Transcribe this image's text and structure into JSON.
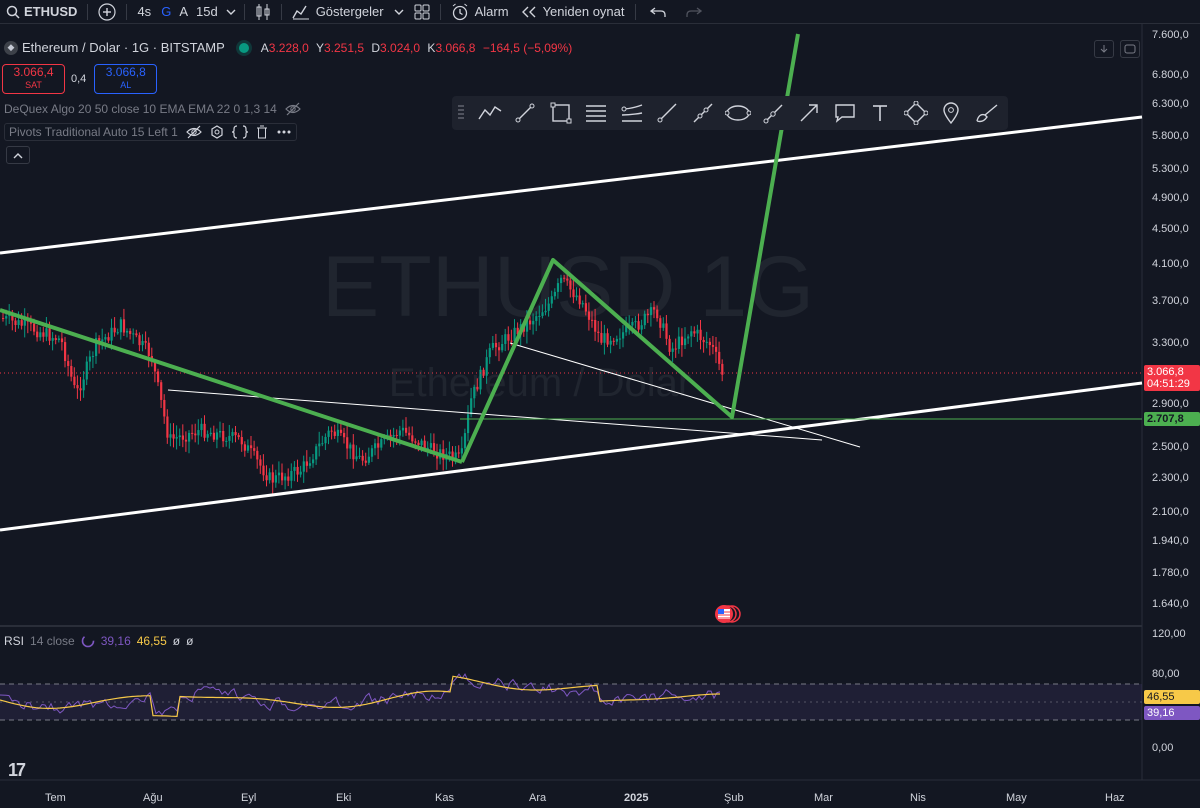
{
  "topbar": {
    "symbol": "ETHUSD",
    "intervals": [
      "4s",
      "G",
      "A",
      "15d"
    ],
    "indicators_label": "Göstergeler",
    "alarm_label": "Alarm",
    "replay_label": "Yeniden oynat"
  },
  "legend": {
    "title": "Ethereum / Dolar · 1G · BITSTAMP",
    "ohlc": [
      {
        "k": "A",
        "v": "3.228,0"
      },
      {
        "k": "Y",
        "v": "3.251,5"
      },
      {
        "k": "D",
        "v": "3.024,0"
      },
      {
        "k": "K",
        "v": "3.066,8"
      }
    ],
    "change": "−164,5 (−5,09%)"
  },
  "trade": {
    "sell_price": "3.066,4",
    "sell_label": "SAT",
    "spread": "0,4",
    "buy_price": "3.066,8",
    "buy_label": "AL"
  },
  "indicators": {
    "dequex": "DeQuex Algo 20 50 close 10 EMA EMA 22 0 1,3 14",
    "pivots": "Pivots Traditional Auto 15 Left 1"
  },
  "watermark": {
    "main": "ETHUSD  1G",
    "sub": "Ethereum / Dolar"
  },
  "price_axis": [
    "7.600,0",
    "6.800,0",
    "6.300,0",
    "5.800,0",
    "5.300,0",
    "4.900,0",
    "4.500,0",
    "4.100,0",
    "3.700,0",
    "3.300,0",
    "2.900,0",
    "2.500,0",
    "2.300,0",
    "2.100,0",
    "1.940,0",
    "1.780,0",
    "1.640,0"
  ],
  "price_tags": {
    "current": "3.066,8",
    "countdown": "04:51:29",
    "level": "2.707,8"
  },
  "rsi": {
    "title": "RSI",
    "params": "14 close",
    "value1": "39,16",
    "value2": "46,55",
    "na1": "ø",
    "na2": "ø",
    "axis": [
      "120,00",
      "80,00",
      "0,00"
    ],
    "tag_ma": "46,55",
    "tag_rsi": "39,16"
  },
  "time_axis": [
    "Tem",
    "Ağu",
    "Eyl",
    "Eki",
    "Kas",
    "Ara",
    "2025",
    "Şub",
    "Mar",
    "Nis",
    "May",
    "Haz"
  ],
  "colors": {
    "bg": "#131722",
    "up": "#089981",
    "down": "#f23645",
    "pattern": "#4caf50",
    "channel": "#ffffff",
    "rsi": "#7e57c2",
    "rsi_ma": "#f7c948"
  },
  "icons": [
    "plus-icon",
    "chevron-down-icon",
    "candles-icon",
    "indicators-icon",
    "layout-icon",
    "alarm-icon",
    "replay-icon",
    "undo-icon",
    "redo-icon"
  ]
}
